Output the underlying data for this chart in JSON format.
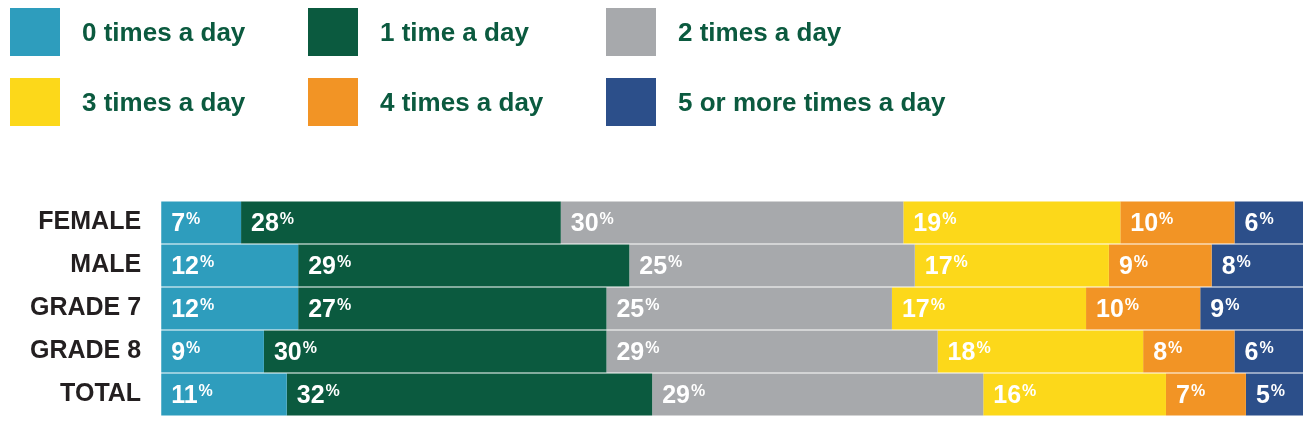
{
  "chart_data": {
    "type": "bar",
    "orientation": "horizontal",
    "stacked": true,
    "legend": "top",
    "tick_labels": "y",
    "xlim": [
      0,
      100
    ],
    "categories": [
      "FEMALE",
      "MALE",
      "GRADE 7",
      "GRADE 8",
      "TOTAL"
    ],
    "series": [
      {
        "name": "0 times a day",
        "color": "#2e9dbd",
        "values": [
          7,
          12,
          12,
          9,
          11
        ],
        "value_labels": [
          "7%",
          "12%",
          "12%",
          "9%",
          "11%"
        ]
      },
      {
        "name": "1 time a day",
        "color": "#0b5a3f",
        "values": [
          28,
          29,
          27,
          30,
          32
        ],
        "value_labels": [
          "28%",
          "29%",
          "27%",
          "30%",
          "32%"
        ]
      },
      {
        "name": "2 times a day",
        "color": "#a7a9ac",
        "values": [
          30,
          25,
          25,
          29,
          29
        ],
        "value_labels": [
          "30%",
          "25%",
          "25%",
          "29%",
          "29%"
        ]
      },
      {
        "name": "3 times a day",
        "color": "#fcd81a",
        "values": [
          19,
          17,
          17,
          18,
          16
        ],
        "value_labels": [
          "19%",
          "17%",
          "17%",
          "18%",
          "16%"
        ]
      },
      {
        "name": "4 times a day",
        "color": "#f29425",
        "values": [
          10,
          9,
          10,
          8,
          7
        ],
        "value_labels": [
          "10%",
          "9%",
          "10%",
          "8%",
          "7%"
        ]
      },
      {
        "name": "5 or more times a day",
        "color": "#2c4f8a",
        "values": [
          6,
          8,
          9,
          6,
          5
        ],
        "value_labels": [
          "6%",
          "8%",
          "9%",
          "6%",
          "5%"
        ]
      }
    ]
  }
}
